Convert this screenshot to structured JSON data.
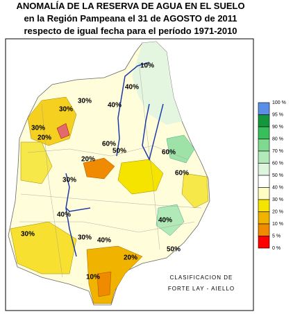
{
  "header": {
    "lines": [
      "ANOMALÍA DE LA RESERVA DE AGUA EN EL SUELO",
      "en la Región Pampeana el 31 de AGOSTO de 2011",
      "respecto de igual fecha para el período 1971-2010"
    ]
  },
  "legend": {
    "labels": [
      "100 %",
      "95 %",
      "90 %",
      "80 %",
      "70 %",
      "60 %",
      "50 %",
      "40 %",
      "30 %",
      "20 %",
      "10 %",
      "5 %",
      "0 %"
    ],
    "colors": [
      "#5b8fe6",
      "#16963c",
      "#38bf5c",
      "#7fd98f",
      "#b2e9b9",
      "#dcf5dc",
      "#ffffff",
      "#fffcc4",
      "#f4e400",
      "#f0b400",
      "#f08a00",
      "#ff0000"
    ]
  },
  "credit": {
    "lines": [
      "CLASIFICACION DE",
      "FORTE LAY - AIELLO"
    ]
  },
  "map": {
    "labels": [
      "10%",
      "40%",
      "40%",
      "30%",
      "30%",
      "30%",
      "20%",
      "60%",
      "50%",
      "20%",
      "60%",
      "60%",
      "30%",
      "40%",
      "30%",
      "30%",
      "40%",
      "20%",
      "40%",
      "50%",
      "10%"
    ]
  }
}
